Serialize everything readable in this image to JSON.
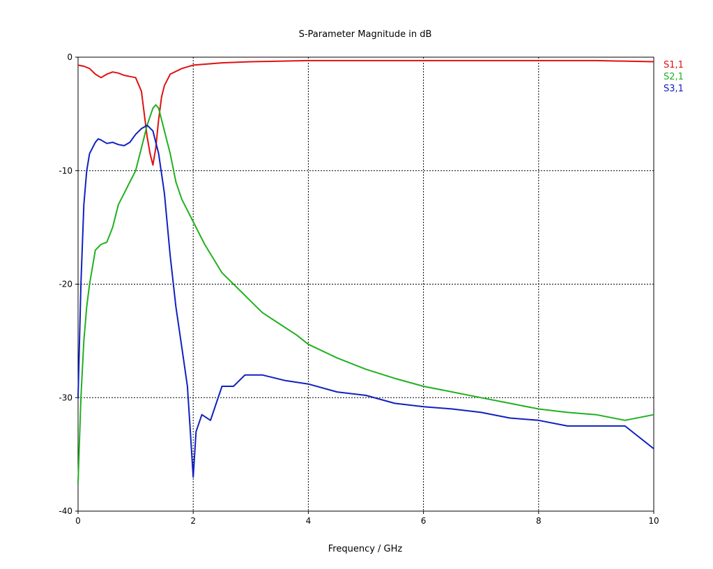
{
  "chart_data": {
    "type": "line",
    "title": "S-Parameter Magnitude in dB",
    "xlabel": "Frequency / GHz",
    "ylabel": "",
    "xlim": [
      0,
      10
    ],
    "ylim": [
      -40,
      0
    ],
    "xticks": [
      0,
      2,
      4,
      6,
      8,
      10
    ],
    "yticks": [
      0,
      -10,
      -20,
      -30,
      -40
    ],
    "xtick_labels": [
      "0",
      "2",
      "4",
      "6",
      "8",
      "10"
    ],
    "ytick_labels": [
      "0",
      "-10",
      "-20",
      "-30",
      "-40"
    ],
    "grid": true,
    "legend_position": "right",
    "series": [
      {
        "name": "S1,1",
        "color": "#e01010",
        "x": [
          0,
          0.1,
          0.2,
          0.3,
          0.4,
          0.5,
          0.6,
          0.7,
          0.8,
          0.9,
          1.0,
          1.1,
          1.15,
          1.2,
          1.25,
          1.3,
          1.35,
          1.4,
          1.45,
          1.5,
          1.6,
          1.8,
          2.0,
          2.5,
          3,
          4,
          5,
          6,
          7,
          8,
          9,
          10
        ],
        "y": [
          -0.7,
          -0.8,
          -1.0,
          -1.5,
          -1.8,
          -1.5,
          -1.3,
          -1.4,
          -1.6,
          -1.7,
          -1.8,
          -3.0,
          -5.0,
          -7.0,
          -8.5,
          -9.5,
          -8.0,
          -5.5,
          -3.5,
          -2.5,
          -1.5,
          -1.0,
          -0.7,
          -0.5,
          -0.4,
          -0.3,
          -0.3,
          -0.3,
          -0.3,
          -0.3,
          -0.3,
          -0.4
        ]
      },
      {
        "name": "S2,1",
        "color": "#20b020",
        "x": [
          0,
          0.05,
          0.1,
          0.15,
          0.2,
          0.3,
          0.4,
          0.5,
          0.6,
          0.7,
          0.8,
          0.9,
          1.0,
          1.1,
          1.2,
          1.3,
          1.35,
          1.4,
          1.5,
          1.6,
          1.7,
          1.8,
          2.0,
          2.2,
          2.5,
          2.8,
          3.0,
          3.2,
          3.5,
          3.8,
          4.0,
          4.5,
          5.0,
          5.5,
          6.0,
          6.5,
          7.0,
          7.5,
          8.0,
          8.5,
          9.0,
          9.5,
          10.0
        ],
        "y": [
          -37.5,
          -30,
          -25,
          -22,
          -20,
          -17,
          -16.5,
          -16.3,
          -15,
          -13,
          -12,
          -11,
          -10,
          -8,
          -6,
          -4.5,
          -4.2,
          -4.5,
          -6.5,
          -8.5,
          -11,
          -12.5,
          -14.5,
          -16.5,
          -19,
          -20.5,
          -21.5,
          -22.5,
          -23.5,
          -24.5,
          -25.3,
          -26.5,
          -27.5,
          -28.3,
          -29,
          -29.5,
          -30,
          -30.5,
          -31,
          -31.3,
          -31.5,
          -32,
          -31.5
        ]
      },
      {
        "name": "S3,1",
        "color": "#1020c0",
        "x": [
          0,
          0.05,
          0.1,
          0.15,
          0.2,
          0.3,
          0.35,
          0.4,
          0.5,
          0.6,
          0.7,
          0.8,
          0.9,
          1.0,
          1.1,
          1.2,
          1.3,
          1.4,
          1.5,
          1.6,
          1.7,
          1.8,
          1.9,
          1.95,
          2.0,
          2.05,
          2.15,
          2.3,
          2.5,
          2.7,
          2.9,
          3.2,
          3.6,
          4.0,
          4.5,
          5.0,
          5.5,
          6.0,
          6.5,
          7.0,
          7.5,
          8.0,
          8.5,
          9.0,
          9.5,
          10.0
        ],
        "y": [
          -30,
          -20,
          -13,
          -10,
          -8.5,
          -7.5,
          -7.2,
          -7.3,
          -7.6,
          -7.5,
          -7.7,
          -7.8,
          -7.5,
          -6.8,
          -6.3,
          -6.0,
          -6.5,
          -8.5,
          -12,
          -17.5,
          -22,
          -25.5,
          -29,
          -33,
          -37,
          -33,
          -31.5,
          -32,
          -29,
          -29,
          -28,
          -28,
          -28.5,
          -28.8,
          -29.5,
          -29.8,
          -30.5,
          -30.8,
          -31,
          -31.3,
          -31.8,
          -32,
          -32.5,
          -32.5,
          -32.5,
          -34.5
        ]
      }
    ]
  }
}
